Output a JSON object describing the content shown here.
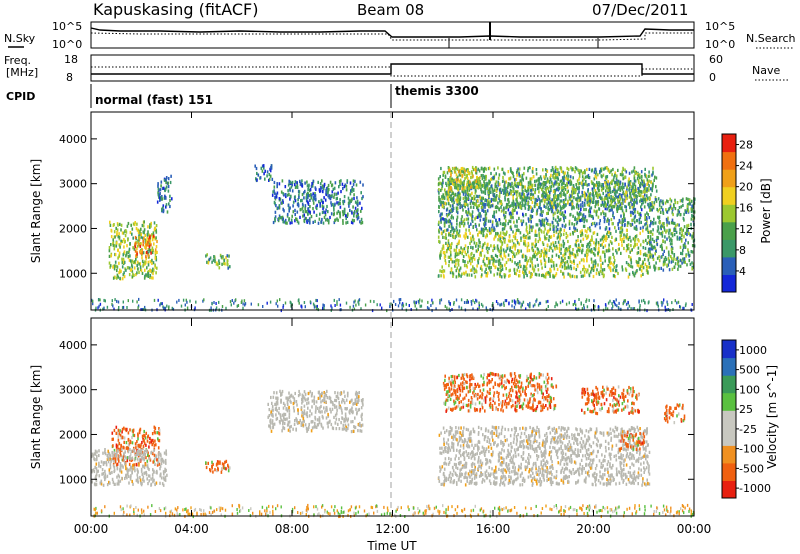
{
  "header": {
    "title": "Kapuskasing (fitACF)",
    "beam": "Beam 08",
    "date": "07/Dec/2011"
  },
  "strips": {
    "nsky_label": "N.Sky",
    "nsearch_label": "N.Search",
    "freq_label_line1": "Freq.",
    "freq_label_line2": "[MHz]",
    "nave_label": "Nave",
    "cpid_label": "CPID",
    "noise_ticks_left": [
      "10^5",
      "10^0"
    ],
    "noise_ticks_right": [
      "10^5",
      "10^0"
    ],
    "freq_ticks": [
      "18",
      "8"
    ],
    "nave_ticks": [
      "60",
      "0"
    ]
  },
  "cpid_segments": [
    {
      "start_hour": 0,
      "label": "normal (fast) 151"
    },
    {
      "start_hour": 12,
      "label": "themis 3300"
    }
  ],
  "colors": {
    "power_scale": [
      "#1428d8",
      "#2a5fb8",
      "#3a9868",
      "#4aa04a",
      "#9cc830",
      "#f0d020",
      "#f0a018",
      "#f07010",
      "#e82010"
    ],
    "velocity_scale": [
      "#1830c8",
      "#2a70b8",
      "#3a9a58",
      "#5ac040",
      "#c8c8c0",
      "#c8c8c0",
      "#f09020",
      "#f06010",
      "#e82010"
    ],
    "ground_scatter": "#b8b8b0"
  },
  "chart_data": [
    {
      "type": "heatmap",
      "name": "power-panel",
      "xlabel": "",
      "ylabel": "Slant Range [km]",
      "xlim": [
        0,
        24
      ],
      "ylim": [
        180,
        4600
      ],
      "yticks": [
        1000,
        2000,
        3000,
        4000
      ],
      "colorbar_label": "Power [dB]",
      "colorbar_ticks": [
        4,
        8,
        12,
        16,
        20,
        24,
        28
      ],
      "colorbar_range": [
        0,
        30
      ],
      "patches": [
        {
          "t": [
            0.7,
            2.6
          ],
          "r": [
            900,
            2200
          ],
          "value": 14
        },
        {
          "t": [
            1.7,
            2.6
          ],
          "r": [
            1400,
            1900
          ],
          "value": 22
        },
        {
          "t": [
            4.5,
            5.5
          ],
          "r": [
            1150,
            1450
          ],
          "value": 12
        },
        {
          "t": [
            2.6,
            3.2
          ],
          "r": [
            2400,
            3200
          ],
          "value": 6
        },
        {
          "t": [
            6.5,
            7.2
          ],
          "r": [
            3100,
            3450
          ],
          "value": 6
        },
        {
          "t": [
            7.2,
            10.8
          ],
          "r": [
            2150,
            3100
          ],
          "value": 7
        },
        {
          "t": [
            13.8,
            22.2
          ],
          "r": [
            950,
            2000
          ],
          "value": 14
        },
        {
          "t": [
            13.8,
            22.2
          ],
          "r": [
            2000,
            3100
          ],
          "value": 9
        },
        {
          "t": [
            13.8,
            22.5
          ],
          "r": [
            2500,
            3400
          ],
          "value": 12
        },
        {
          "t": [
            14.2,
            15.5
          ],
          "r": [
            2900,
            3400
          ],
          "value": 17
        },
        {
          "t": [
            22.2,
            24.0
          ],
          "r": [
            1100,
            2700
          ],
          "value": 10
        }
      ]
    },
    {
      "type": "heatmap",
      "name": "velocity-panel",
      "xlabel": "Time UT",
      "ylabel": "Slant Range [km]",
      "xlim": [
        0,
        24
      ],
      "ylim": [
        180,
        4600
      ],
      "xticks": [
        "00:00",
        "04:00",
        "08:00",
        "12:00",
        "16:00",
        "20:00",
        "00:00"
      ],
      "yticks": [
        1000,
        2000,
        3000,
        4000
      ],
      "colorbar_label": "Velocity [m s^-1]",
      "colorbar_ticks": [
        1000,
        500,
        100,
        25,
        -25,
        -100,
        -500,
        -1000
      ],
      "patches": [
        {
          "t": [
            0.8,
            2.7
          ],
          "r": [
            1350,
            2200
          ],
          "value": -150
        },
        {
          "t": [
            4.5,
            5.5
          ],
          "r": [
            1150,
            1450
          ],
          "value": -120
        },
        {
          "t": [
            0.0,
            3.0
          ],
          "r": [
            900,
            1700
          ],
          "value": "ground"
        },
        {
          "t": [
            7.0,
            10.8
          ],
          "r": [
            2100,
            3000
          ],
          "value": "ground"
        },
        {
          "t": [
            13.8,
            22.2
          ],
          "r": [
            900,
            2200
          ],
          "value": "ground"
        },
        {
          "t": [
            14.0,
            18.5
          ],
          "r": [
            2550,
            3400
          ],
          "value": -140
        },
        {
          "t": [
            19.5,
            21.8
          ],
          "r": [
            2500,
            3100
          ],
          "value": -120
        },
        {
          "t": [
            21.0,
            22.0
          ],
          "r": [
            1700,
            2100
          ],
          "value": -200
        },
        {
          "t": [
            22.8,
            23.6
          ],
          "r": [
            2300,
            2700
          ],
          "value": -150
        }
      ]
    }
  ]
}
